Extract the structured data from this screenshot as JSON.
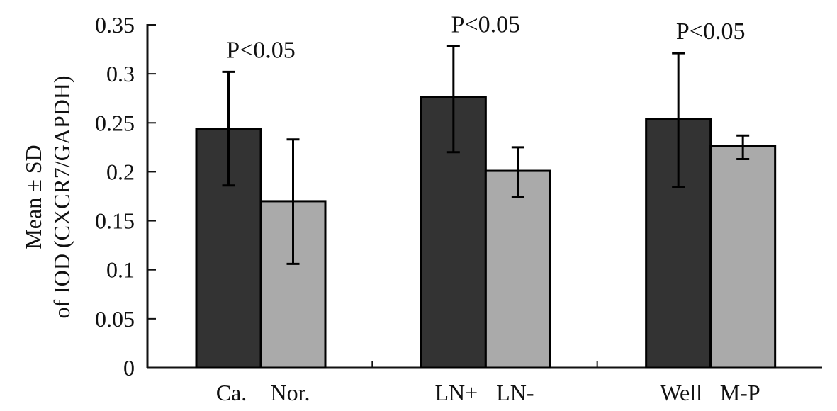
{
  "chart_data": {
    "type": "bar",
    "title": "",
    "xlabel": "",
    "ylabel": [
      "Mean ± SD",
      "of IOD (CXCR7/GAPDH)"
    ],
    "ylim": [
      0,
      0.35
    ],
    "yticks": [
      "0",
      "0.05",
      "0.1",
      "0.15",
      "0.2",
      "0.25",
      "0.3",
      "0.35"
    ],
    "grid": false,
    "groups": [
      {
        "annotation": "P<0.05",
        "bars": [
          {
            "label": "Ca.",
            "value": 0.244,
            "err_low": 0.186,
            "err_high": 0.302,
            "color": "#333333"
          },
          {
            "label": "Nor.",
            "value": 0.17,
            "err_low": 0.106,
            "err_high": 0.233,
            "color": "#aaaaaa"
          }
        ]
      },
      {
        "annotation": "P<0.05",
        "bars": [
          {
            "label": "LN+",
            "value": 0.276,
            "err_low": 0.22,
            "err_high": 0.328,
            "color": "#333333"
          },
          {
            "label": "LN-",
            "value": 0.201,
            "err_low": 0.174,
            "err_high": 0.225,
            "color": "#aaaaaa"
          }
        ]
      },
      {
        "annotation": "P<0.05",
        "bars": [
          {
            "label": "Well",
            "value": 0.254,
            "err_low": 0.184,
            "err_high": 0.321,
            "color": "#333333"
          },
          {
            "label": "M-P",
            "value": 0.226,
            "err_low": 0.213,
            "err_high": 0.237,
            "color": "#aaaaaa"
          }
        ]
      }
    ]
  }
}
